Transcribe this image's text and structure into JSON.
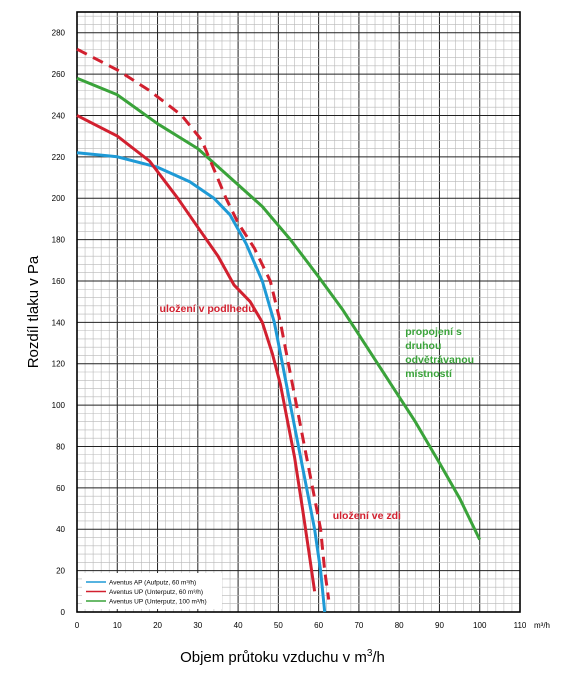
{
  "chart_data": {
    "type": "line",
    "xlabel": "Objem průtoku vzduchu v m",
    "xlabel_sup": "3",
    "xlabel_tail": "/h",
    "ylabel": "Rozdíl tlaku v Pa",
    "xlim": [
      0,
      110
    ],
    "ylim": [
      0,
      290
    ],
    "x_ticks": [
      "0",
      "10",
      "20",
      "30",
      "40",
      "50",
      "60",
      "70",
      "80",
      "90",
      "100",
      "110"
    ],
    "x_unit_tick": "m³/h",
    "y_ticks": [
      "0",
      "20",
      "40",
      "60",
      "80",
      "100",
      "120",
      "140",
      "160",
      "180",
      "200",
      "220",
      "240",
      "260",
      "280"
    ],
    "grid": true,
    "legend_position": "bottom-left",
    "series": [
      {
        "name": "Aventus AP (Aufputz, 60 m³/h)",
        "color": "#1e9ad6",
        "dash": false,
        "in_legend": true,
        "points": [
          [
            0,
            222
          ],
          [
            10,
            220
          ],
          [
            20,
            215
          ],
          [
            28,
            208
          ],
          [
            34,
            200
          ],
          [
            38,
            192
          ],
          [
            42,
            178
          ],
          [
            46,
            160
          ],
          [
            49,
            140
          ],
          [
            51,
            120
          ],
          [
            53,
            100
          ],
          [
            55,
            80
          ],
          [
            57,
            60
          ],
          [
            59,
            40
          ],
          [
            60.5,
            20
          ],
          [
            61.5,
            0
          ]
        ]
      },
      {
        "name": "Aventus UP (Unterputz, 60 m³/h)",
        "color": "#d2202f",
        "dash": false,
        "in_legend": true,
        "points": [
          [
            0,
            240
          ],
          [
            10,
            230
          ],
          [
            18,
            218
          ],
          [
            25,
            200
          ],
          [
            30,
            186
          ],
          [
            35,
            172
          ],
          [
            39,
            158
          ],
          [
            43,
            150
          ],
          [
            46,
            140
          ],
          [
            48.5,
            125
          ],
          [
            50.5,
            110
          ],
          [
            52,
            95
          ],
          [
            54,
            75
          ],
          [
            56,
            50
          ],
          [
            57.5,
            30
          ],
          [
            59,
            10
          ]
        ]
      },
      {
        "name": "Aventus UP (Unterputz, 100 m³/h)",
        "color": "#3aa33a",
        "dash": false,
        "in_legend": true,
        "points": [
          [
            0,
            258
          ],
          [
            10,
            250
          ],
          [
            20,
            236
          ],
          [
            30,
            224
          ],
          [
            38,
            210
          ],
          [
            46,
            196
          ],
          [
            53,
            180
          ],
          [
            60,
            162
          ],
          [
            66,
            146
          ],
          [
            72,
            128
          ],
          [
            78,
            110
          ],
          [
            84,
            92
          ],
          [
            90,
            72
          ],
          [
            95,
            55
          ],
          [
            100,
            35
          ]
        ]
      },
      {
        "name": "",
        "color": "#d2202f",
        "dash": true,
        "in_legend": false,
        "points": [
          [
            0,
            272
          ],
          [
            10,
            262
          ],
          [
            18,
            252
          ],
          [
            26,
            240
          ],
          [
            31,
            228
          ],
          [
            34,
            214
          ],
          [
            37,
            200
          ],
          [
            40,
            188
          ],
          [
            44,
            176
          ],
          [
            48,
            160
          ],
          [
            50.5,
            140
          ],
          [
            52.5,
            120
          ],
          [
            54.5,
            100
          ],
          [
            56.5,
            80
          ],
          [
            58.5,
            60
          ],
          [
            60.5,
            40
          ],
          [
            61.5,
            20
          ],
          [
            62.5,
            6
          ]
        ]
      }
    ],
    "annotations": [
      {
        "text": "uložení v podlhedu",
        "color": "#d2202f"
      },
      {
        "lines": [
          "propojení s",
          "druhou",
          "odvětrávanou",
          "místností"
        ],
        "color": "#3aa33a"
      },
      {
        "text": "uložení ve zdi",
        "color": "#d2202f"
      }
    ]
  }
}
